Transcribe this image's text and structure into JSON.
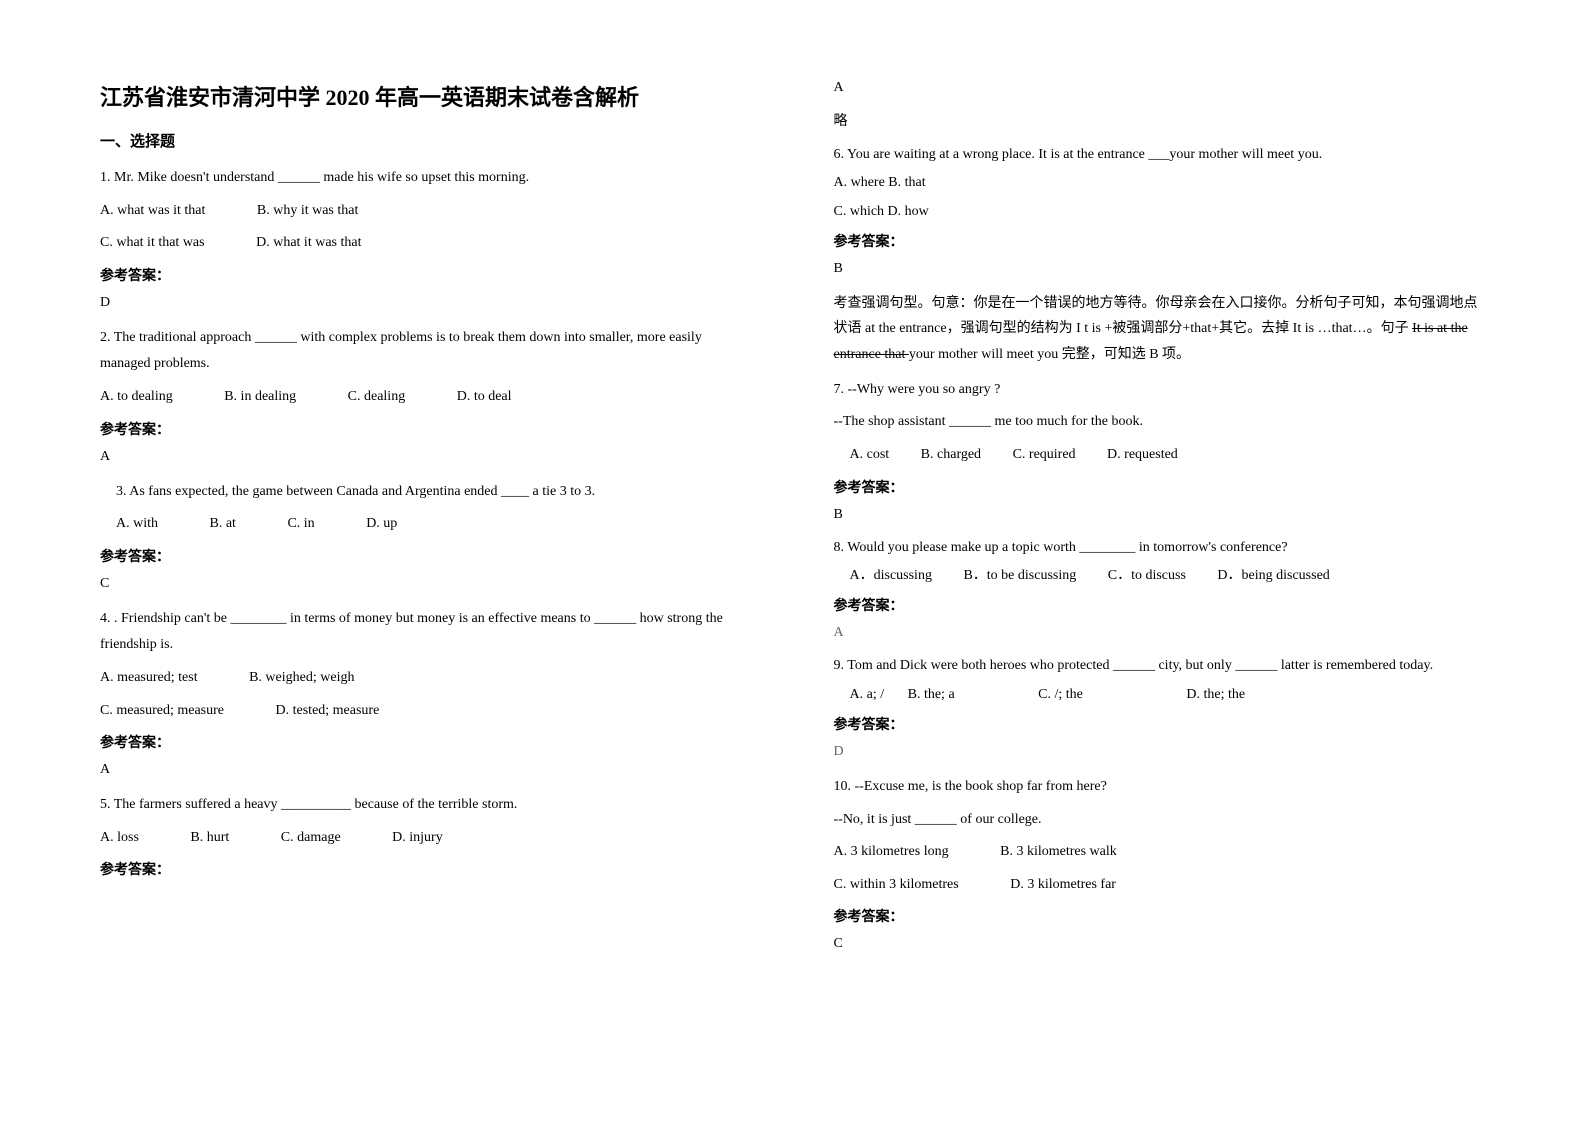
{
  "title": "江苏省淮安市清河中学 2020 年高一英语期末试卷含解析",
  "section1_heading": "一、选择题",
  "q1": {
    "text": "1. Mr. Mike doesn't understand ______ made his wife so upset this morning.",
    "optA": "A. what was it that",
    "optB": "B. why it was that",
    "optC": "C. what it that was",
    "optD": "D. what it was that",
    "answer_label": "参考答案：",
    "answer": "D"
  },
  "q2": {
    "text": "2. The traditional approach ______ with complex problems is to break them down into smaller, more easily managed problems.",
    "optA": "A. to dealing",
    "optB": "B. in dealing",
    "optC": "C. dealing",
    "optD": "D. to deal",
    "answer_label": "参考答案：",
    "answer": "A"
  },
  "q3": {
    "text": "3. As fans expected, the game between Canada and Argentina ended ____ a tie 3 to 3.",
    "optA": "A. with",
    "optB": "B. at",
    "optC": "C. in",
    "optD": "D. up",
    "answer_label": "参考答案：",
    "answer": "C"
  },
  "q4": {
    "text": "4. . Friendship can't be ________ in terms of money but money is an effective means to ______ how strong the friendship is.",
    "optA": "A. measured; test",
    "optB": "B. weighed; weigh",
    "optC": "C. measured; measure",
    "optD": "D. tested; measure",
    "answer_label": "参考答案：",
    "answer": "A"
  },
  "q5": {
    "text": "5. The farmers suffered a heavy __________ because of the terrible storm.",
    "optA": "A. loss",
    "optB": "B. hurt",
    "optC": "C. damage",
    "optD": "D. injury",
    "answer_label": "参考答案：",
    "answer": "A",
    "brief": "略"
  },
  "q6": {
    "text": "6. You are waiting at a wrong place. It is at the entrance ___your mother will meet you.",
    "lineAB": "A. where   B. that",
    "lineCD": "C. which   D. how",
    "answer_label": "参考答案：",
    "answer": "B",
    "explanation1": "考查强调句型。句意：你是在一个错误的地方等待。你母亲会在入口接你。分析句子可知，本句强调地点状语 at the entrance，强调句型的结构为 I t is +被强调部分+that+其它。去掉 It is …that…。句子 ",
    "explanation2_strike": "It is at the entrance that ",
    "explanation2_rest": "your mother will meet you 完整，可知选 B 项。"
  },
  "q7": {
    "text1": "7. --Why were you so angry ?",
    "text2": "--The shop assistant ______ me too much for the book.",
    "optA": "A. cost",
    "optB": "B. charged",
    "optC": "C. required",
    "optD": "D. requested",
    "answer_label": "参考答案：",
    "answer": "B"
  },
  "q8": {
    "text": "8. Would you please make up a topic worth ________ in tomorrow's conference?",
    "optA": "A．discussing",
    "optB": "B．to be discussing",
    "optC": "C．to discuss",
    "optD": "D．being discussed",
    "answer_label": "参考答案：",
    "answer": "A"
  },
  "q9": {
    "text": "9. Tom and Dick were both heroes who protected ______ city, but only ______ latter is remembered today.",
    "optA": "A. a; /",
    "optB": "B. the; a",
    "optC": "C. /; the",
    "optD": "D. the; the",
    "answer_label": "参考答案：",
    "answer": "D"
  },
  "q10": {
    "text1": "10. --Excuse me, is the book shop far from here?",
    "text2": "--No, it is just ______ of our college.",
    "optA": "A. 3 kilometres long",
    "optB": "B. 3 kilometres walk",
    "optC": "C. within 3 kilometres",
    "optD": "D. 3 kilometres far",
    "answer_label": "参考答案：",
    "answer": "C"
  }
}
